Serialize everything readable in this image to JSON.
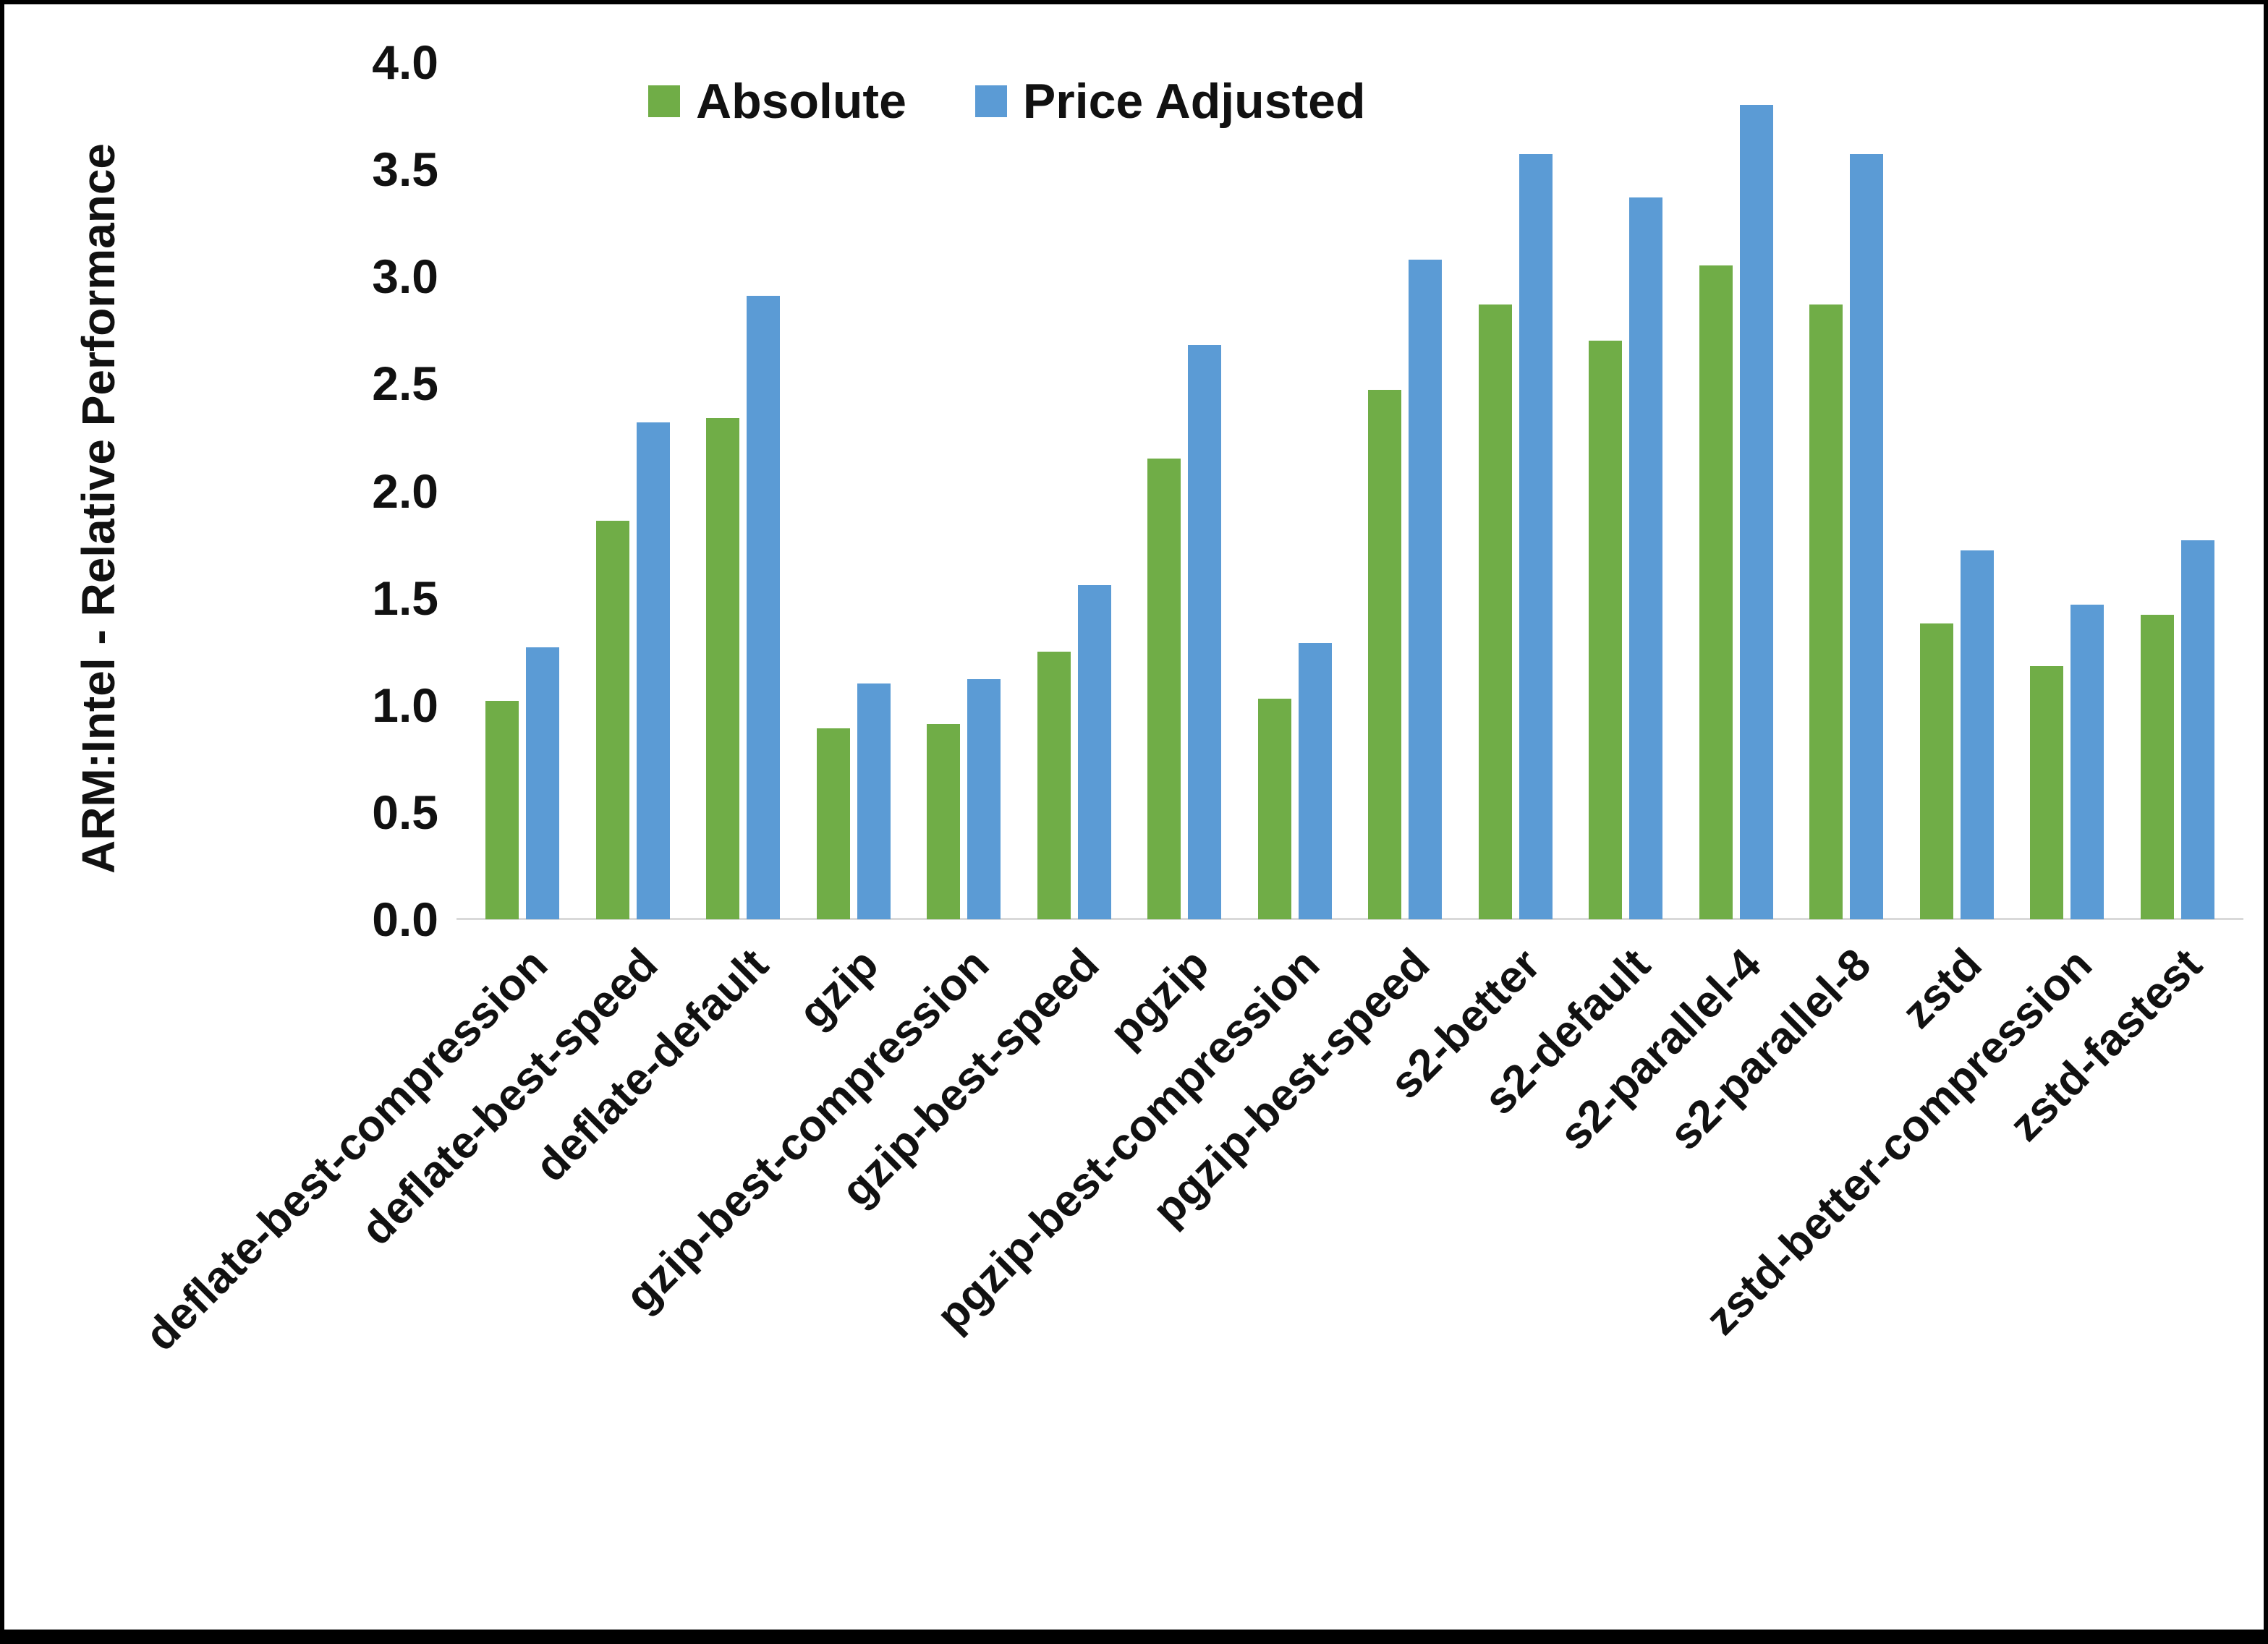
{
  "chart_data": {
    "type": "bar",
    "title": "",
    "xlabel": "",
    "ylabel": "ARM:Intel - Relative Performance",
    "ylim": [
      0,
      4
    ],
    "ytick_step": 0.5,
    "ytick_labels": [
      "0.0",
      "0.5",
      "1.0",
      "1.5",
      "2.0",
      "2.5",
      "3.0",
      "3.5",
      "4.0"
    ],
    "grid": false,
    "legend_position": "top-center",
    "categories": [
      "deflate-best-compression",
      "deflate-best-speed",
      "deflate-default",
      "gzip",
      "gzip-best-compression",
      "gzip-best-speed",
      "pgzip",
      "pgzip-best-compression",
      "pgzip-best-speed",
      "s2-better",
      "s2-default",
      "s2-parallel-4",
      "s2-parallel-8",
      "zstd",
      "zstd-better-compression",
      "zstd-fastest"
    ],
    "series": [
      {
        "name": "Absolute",
        "color": "#70AD47",
        "values": [
          1.02,
          1.86,
          2.34,
          0.89,
          0.91,
          1.25,
          2.15,
          1.03,
          2.47,
          2.87,
          2.7,
          3.05,
          2.87,
          1.38,
          1.18,
          1.42
        ]
      },
      {
        "name": "Price Adjusted",
        "color": "#5B9BD5",
        "values": [
          1.27,
          2.32,
          2.91,
          1.1,
          1.12,
          1.56,
          2.68,
          1.29,
          3.08,
          3.57,
          3.37,
          3.8,
          3.57,
          1.72,
          1.47,
          1.77
        ]
      }
    ]
  }
}
